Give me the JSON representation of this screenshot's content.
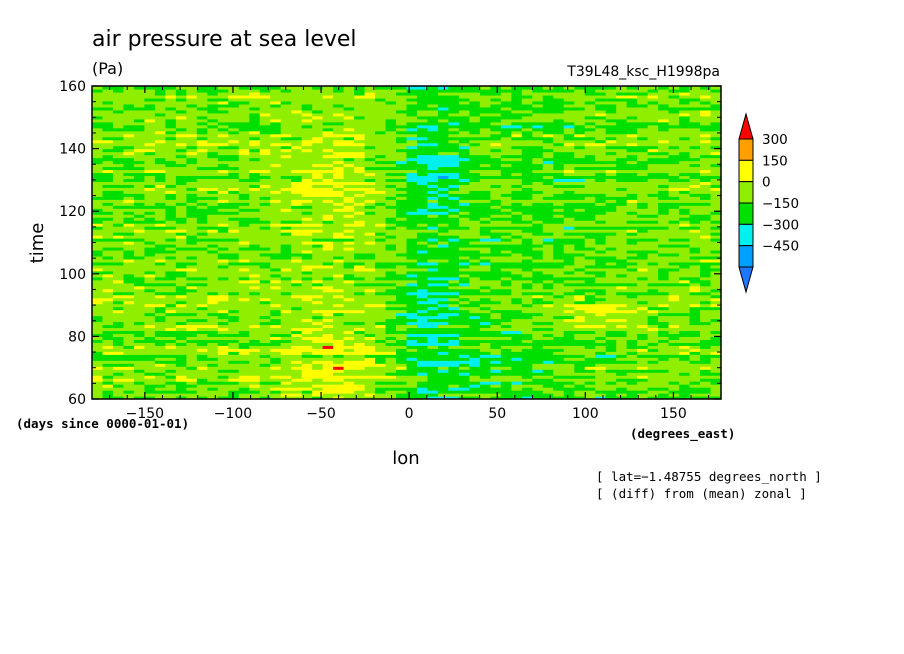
{
  "chart_data": {
    "type": "heatmap",
    "title": "air pressure at sea level",
    "units": "(Pa)",
    "experiment": "T39L48_ksc_H1998pa",
    "xlabel": "lon",
    "x_units": "(degrees_east)",
    "ylabel": "time",
    "y_units": "(days since 0000-01-01)",
    "xlim": [
      -180,
      177
    ],
    "ylim": [
      60,
      160
    ],
    "x_ticks": [
      -150,
      -100,
      -50,
      0,
      50,
      100,
      150
    ],
    "y_ticks": [
      60,
      80,
      100,
      120,
      140,
      160
    ],
    "x_tick_labels": [
      "−150",
      "−100",
      "−50",
      "0",
      "50",
      "100",
      "150"
    ],
    "y_tick_labels": [
      "60",
      "80",
      "100",
      "120",
      "140",
      "160"
    ],
    "annotations": [
      "[ lat=−1.48755 degrees_north ]",
      "[ (diff) from (mean) zonal ]"
    ],
    "colorbar": {
      "levels": [
        -450,
        -300,
        -150,
        0,
        150,
        300
      ],
      "level_labels": [
        "−450",
        "−300",
        "−150",
        "0",
        "150",
        "300"
      ],
      "colors": [
        "#1e78ff",
        "#00a0ff",
        "#00f0f0",
        "#00e000",
        "#90ee00",
        "#ffff00",
        "#ffa000",
        "#ff0000"
      ]
    }
  }
}
